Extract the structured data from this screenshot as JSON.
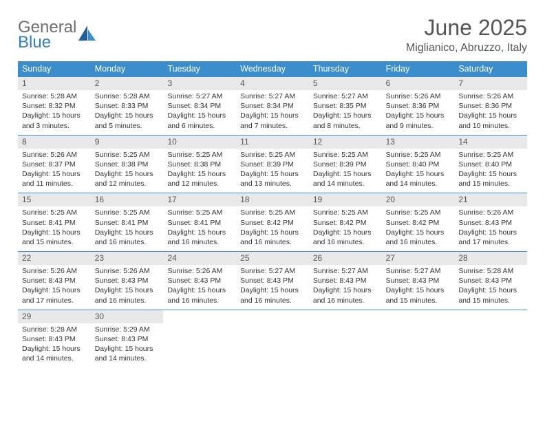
{
  "logo": {
    "word1": "General",
    "word2": "Blue"
  },
  "title": "June 2025",
  "location": "Miglianico, Abruzzo, Italy",
  "weekdays": [
    "Sunday",
    "Monday",
    "Tuesday",
    "Wednesday",
    "Thursday",
    "Friday",
    "Saturday"
  ],
  "colors": {
    "header_bg": "#3c8dcc",
    "daynum_bg": "#e8e8e8",
    "text": "#333333",
    "title": "#555555",
    "week_border": "#3c8dcc"
  },
  "weeks": [
    [
      {
        "n": "1",
        "sr": "Sunrise: 5:28 AM",
        "ss": "Sunset: 8:32 PM",
        "d1": "Daylight: 15 hours",
        "d2": "and 3 minutes."
      },
      {
        "n": "2",
        "sr": "Sunrise: 5:28 AM",
        "ss": "Sunset: 8:33 PM",
        "d1": "Daylight: 15 hours",
        "d2": "and 5 minutes."
      },
      {
        "n": "3",
        "sr": "Sunrise: 5:27 AM",
        "ss": "Sunset: 8:34 PM",
        "d1": "Daylight: 15 hours",
        "d2": "and 6 minutes."
      },
      {
        "n": "4",
        "sr": "Sunrise: 5:27 AM",
        "ss": "Sunset: 8:34 PM",
        "d1": "Daylight: 15 hours",
        "d2": "and 7 minutes."
      },
      {
        "n": "5",
        "sr": "Sunrise: 5:27 AM",
        "ss": "Sunset: 8:35 PM",
        "d1": "Daylight: 15 hours",
        "d2": "and 8 minutes."
      },
      {
        "n": "6",
        "sr": "Sunrise: 5:26 AM",
        "ss": "Sunset: 8:36 PM",
        "d1": "Daylight: 15 hours",
        "d2": "and 9 minutes."
      },
      {
        "n": "7",
        "sr": "Sunrise: 5:26 AM",
        "ss": "Sunset: 8:36 PM",
        "d1": "Daylight: 15 hours",
        "d2": "and 10 minutes."
      }
    ],
    [
      {
        "n": "8",
        "sr": "Sunrise: 5:26 AM",
        "ss": "Sunset: 8:37 PM",
        "d1": "Daylight: 15 hours",
        "d2": "and 11 minutes."
      },
      {
        "n": "9",
        "sr": "Sunrise: 5:25 AM",
        "ss": "Sunset: 8:38 PM",
        "d1": "Daylight: 15 hours",
        "d2": "and 12 minutes."
      },
      {
        "n": "10",
        "sr": "Sunrise: 5:25 AM",
        "ss": "Sunset: 8:38 PM",
        "d1": "Daylight: 15 hours",
        "d2": "and 12 minutes."
      },
      {
        "n": "11",
        "sr": "Sunrise: 5:25 AM",
        "ss": "Sunset: 8:39 PM",
        "d1": "Daylight: 15 hours",
        "d2": "and 13 minutes."
      },
      {
        "n": "12",
        "sr": "Sunrise: 5:25 AM",
        "ss": "Sunset: 8:39 PM",
        "d1": "Daylight: 15 hours",
        "d2": "and 14 minutes."
      },
      {
        "n": "13",
        "sr": "Sunrise: 5:25 AM",
        "ss": "Sunset: 8:40 PM",
        "d1": "Daylight: 15 hours",
        "d2": "and 14 minutes."
      },
      {
        "n": "14",
        "sr": "Sunrise: 5:25 AM",
        "ss": "Sunset: 8:40 PM",
        "d1": "Daylight: 15 hours",
        "d2": "and 15 minutes."
      }
    ],
    [
      {
        "n": "15",
        "sr": "Sunrise: 5:25 AM",
        "ss": "Sunset: 8:41 PM",
        "d1": "Daylight: 15 hours",
        "d2": "and 15 minutes."
      },
      {
        "n": "16",
        "sr": "Sunrise: 5:25 AM",
        "ss": "Sunset: 8:41 PM",
        "d1": "Daylight: 15 hours",
        "d2": "and 16 minutes."
      },
      {
        "n": "17",
        "sr": "Sunrise: 5:25 AM",
        "ss": "Sunset: 8:41 PM",
        "d1": "Daylight: 15 hours",
        "d2": "and 16 minutes."
      },
      {
        "n": "18",
        "sr": "Sunrise: 5:25 AM",
        "ss": "Sunset: 8:42 PM",
        "d1": "Daylight: 15 hours",
        "d2": "and 16 minutes."
      },
      {
        "n": "19",
        "sr": "Sunrise: 5:25 AM",
        "ss": "Sunset: 8:42 PM",
        "d1": "Daylight: 15 hours",
        "d2": "and 16 minutes."
      },
      {
        "n": "20",
        "sr": "Sunrise: 5:25 AM",
        "ss": "Sunset: 8:42 PM",
        "d1": "Daylight: 15 hours",
        "d2": "and 16 minutes."
      },
      {
        "n": "21",
        "sr": "Sunrise: 5:26 AM",
        "ss": "Sunset: 8:43 PM",
        "d1": "Daylight: 15 hours",
        "d2": "and 17 minutes."
      }
    ],
    [
      {
        "n": "22",
        "sr": "Sunrise: 5:26 AM",
        "ss": "Sunset: 8:43 PM",
        "d1": "Daylight: 15 hours",
        "d2": "and 17 minutes."
      },
      {
        "n": "23",
        "sr": "Sunrise: 5:26 AM",
        "ss": "Sunset: 8:43 PM",
        "d1": "Daylight: 15 hours",
        "d2": "and 16 minutes."
      },
      {
        "n": "24",
        "sr": "Sunrise: 5:26 AM",
        "ss": "Sunset: 8:43 PM",
        "d1": "Daylight: 15 hours",
        "d2": "and 16 minutes."
      },
      {
        "n": "25",
        "sr": "Sunrise: 5:27 AM",
        "ss": "Sunset: 8:43 PM",
        "d1": "Daylight: 15 hours",
        "d2": "and 16 minutes."
      },
      {
        "n": "26",
        "sr": "Sunrise: 5:27 AM",
        "ss": "Sunset: 8:43 PM",
        "d1": "Daylight: 15 hours",
        "d2": "and 16 minutes."
      },
      {
        "n": "27",
        "sr": "Sunrise: 5:27 AM",
        "ss": "Sunset: 8:43 PM",
        "d1": "Daylight: 15 hours",
        "d2": "and 15 minutes."
      },
      {
        "n": "28",
        "sr": "Sunrise: 5:28 AM",
        "ss": "Sunset: 8:43 PM",
        "d1": "Daylight: 15 hours",
        "d2": "and 15 minutes."
      }
    ],
    [
      {
        "n": "29",
        "sr": "Sunrise: 5:28 AM",
        "ss": "Sunset: 8:43 PM",
        "d1": "Daylight: 15 hours",
        "d2": "and 14 minutes."
      },
      {
        "n": "30",
        "sr": "Sunrise: 5:29 AM",
        "ss": "Sunset: 8:43 PM",
        "d1": "Daylight: 15 hours",
        "d2": "and 14 minutes."
      },
      {
        "empty": true
      },
      {
        "empty": true
      },
      {
        "empty": true
      },
      {
        "empty": true
      },
      {
        "empty": true
      }
    ]
  ]
}
